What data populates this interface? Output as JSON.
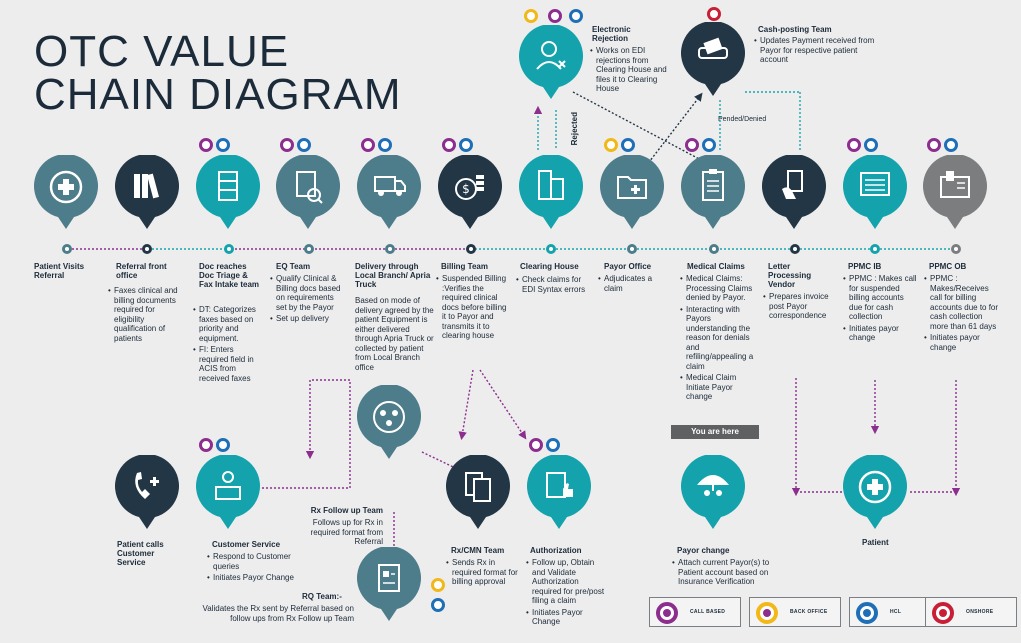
{
  "title": {
    "line1": "OTC VALUE",
    "line2": "CHAIN DIAGRAM"
  },
  "colors": {
    "teal": "#14a3ac",
    "navy": "#233645",
    "slate": "#4d7c8a",
    "gray": "#7b7d7f",
    "callbased": "#8c2e8d",
    "backoffice": "#f2b818",
    "hcl": "#1e6fb7",
    "onshore": "#c81f37"
  },
  "nodes": [
    {
      "id": "patient-visits",
      "label": "Patient Visits Referral",
      "icon": "cross-icon"
    },
    {
      "id": "referral-front-office",
      "label": "Referral front office",
      "icon": "binders-icon",
      "bullets": [
        "Faxes clinical and billing documents required for eligibility qualification of patients"
      ]
    },
    {
      "id": "doc-triage",
      "label": "Doc reaches Doc Triage & Fax Intake team",
      "icon": "cabinet-icon",
      "bullets": [
        "DT: Categorizes faxes based on priority and equipment.",
        "FI: Enters required field in ACIS from received faxes"
      ]
    },
    {
      "id": "eq-team",
      "label": "EQ Team",
      "icon": "document-check-icon",
      "bullets": [
        "Qualify Clinical & Billing docs based on requirements set by the Payor",
        "Set up delivery"
      ]
    },
    {
      "id": "delivery",
      "label": "Delivery through Local Branch/ Apria Truck",
      "icon": "truck-icon",
      "text": "Based on mode of delivery agreed by the patient Equipment is either delivered through Apria Truck or collected by patient from Local Branch office"
    },
    {
      "id": "billing-team",
      "label": "Billing Team",
      "icon": "dollar-coins-icon",
      "bullets": [
        "Suspended Billing :Verifies the required clinical docs before billing it to Payor and transmits it to clearing house"
      ]
    },
    {
      "id": "clearing-house",
      "label": "Clearing House",
      "icon": "building-icon",
      "bullets": [
        "Check claims for EDI Syntax errors"
      ]
    },
    {
      "id": "payor-office",
      "label": "Payor Office",
      "icon": "folder-icon",
      "bullets": [
        "Adjudicates a claim"
      ]
    },
    {
      "id": "medical-claims",
      "label": "Medical Claims",
      "icon": "clipboard-icon",
      "bullets": [
        "Medical Claims: Processing Claims denied by Payor.",
        "Interacting with Payors understanding the reason for denials and refiling/appealing a claim",
        "Medical Claim Initiate Payor change"
      ]
    },
    {
      "id": "letter-processing",
      "label": "Letter Processing Vendor",
      "icon": "letter-hand-icon",
      "bullets": [
        "Prepares invoice post Payor correspondence"
      ]
    },
    {
      "id": "ppmc-ib",
      "label": "PPMC IB",
      "icon": "monitor-icon",
      "bullets": [
        "PPMC : Makes call for suspended billing accounts due for cash collection",
        "Initiates payor change"
      ]
    },
    {
      "id": "ppmc-ob",
      "label": "PPMC OB",
      "icon": "phone-icon",
      "bullets": [
        "PPMC : Makes/Receives call for billing accounts due to for cash collection more than 61 days",
        "Initiates payor change"
      ]
    },
    {
      "id": "electronic-rejection",
      "label": "Electronic Rejection",
      "icon": "user-x-icon",
      "bullets": [
        "Works on EDI rejections from Clearing House and files it to Clearing House"
      ]
    },
    {
      "id": "cash-posting",
      "label": "Cash-posting Team",
      "icon": "card-payment-icon",
      "bullets": [
        "Updates Payment received from Payor for respective patient account"
      ]
    },
    {
      "id": "patient-calls",
      "label": "Patient calls Customer Service",
      "icon": "telephone-icon"
    },
    {
      "id": "customer-service",
      "label": "Customer Service",
      "icon": "desk-agent-icon",
      "bullets": [
        "Respond to Customer queries",
        "Initiates Payor Change"
      ]
    },
    {
      "id": "rx-follow-up",
      "label": "Rx Follow up Team",
      "icon": "group-icon",
      "text": "Follows up for Rx in required format from Referral"
    },
    {
      "id": "rx-cmn",
      "label": "Rx/CMN Team",
      "icon": "documents-icon",
      "bullets": [
        "Sends Rx in required format for billing approval"
      ]
    },
    {
      "id": "authorization",
      "label": "Authorization",
      "icon": "doc-thumb-icon",
      "bullets": [
        "Follow up, Obtain and Validate Authorization required for pre/post filing a claim",
        "Initiates Payor Change"
      ]
    },
    {
      "id": "rq-team",
      "label": "RQ Team:-",
      "icon": "rx-doc-icon",
      "text": "Validates the Rx sent by Referral based on follow ups from Rx Follow up Team"
    },
    {
      "id": "payor-change",
      "label": "Payor change",
      "icon": "umbrella-people-icon",
      "bullets": [
        "Attach current Payor(s) to Patient account based on Insurance Verification"
      ]
    },
    {
      "id": "patient",
      "label": "Patient",
      "icon": "cross-icon"
    }
  ],
  "annotations": {
    "rejected": "Rejected",
    "pended_denied": "Pended/Denied",
    "you_are_here": "You are here"
  },
  "legend": [
    {
      "label": "CALL BASED",
      "color": "#8c2e8d"
    },
    {
      "label": "BACK OFFICE",
      "color": "#f2b818"
    },
    {
      "label": "HCL",
      "color": "#1e6fb7"
    },
    {
      "label": "ONSHORE",
      "color": "#c81f37"
    }
  ]
}
